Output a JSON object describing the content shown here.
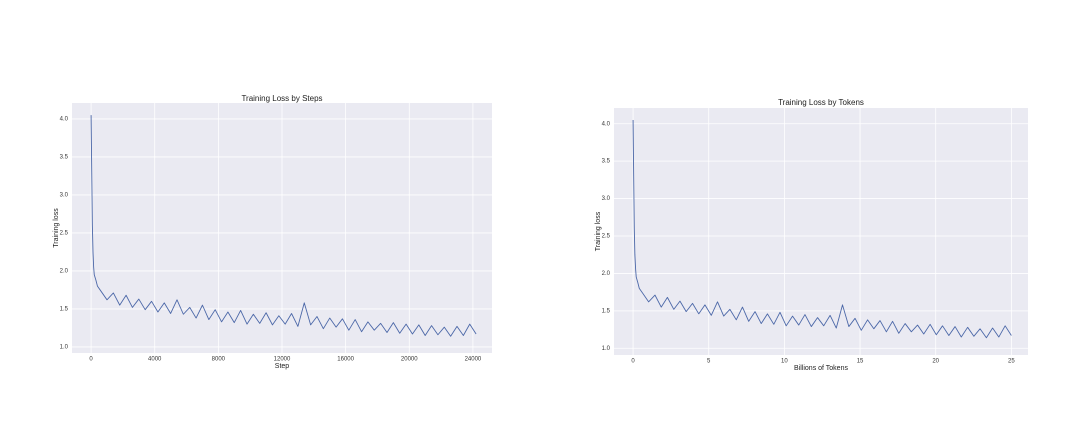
{
  "chart_data": [
    {
      "type": "line",
      "title": "Training Loss by Steps",
      "x_label": "Step",
      "y_label": "Training loss",
      "x": [
        0,
        40,
        80,
        120,
        160,
        200,
        300,
        400,
        600,
        1000,
        1400,
        1800,
        2200,
        2600,
        3000,
        3400,
        3800,
        4200,
        4600,
        5000,
        5400,
        5800,
        6200,
        6600,
        7000,
        7400,
        7800,
        8200,
        8600,
        9000,
        9400,
        9800,
        10200,
        10600,
        11000,
        11400,
        11800,
        12200,
        12600,
        13000,
        13400,
        13800,
        14200,
        14600,
        15000,
        15400,
        15800,
        16200,
        16600,
        17000,
        17400,
        17800,
        18200,
        18600,
        19000,
        19400,
        19800,
        20200,
        20600,
        21000,
        21400,
        21800,
        22200,
        22600,
        23000,
        23400,
        23800,
        24200
      ],
      "series": [
        {
          "name": "Training loss",
          "color": "#4c68a8",
          "values": [
            4.05,
            3.3,
            2.6,
            2.25,
            2.05,
            1.95,
            1.88,
            1.8,
            1.74,
            1.62,
            1.71,
            1.55,
            1.68,
            1.52,
            1.63,
            1.49,
            1.6,
            1.46,
            1.58,
            1.44,
            1.62,
            1.43,
            1.52,
            1.38,
            1.55,
            1.36,
            1.49,
            1.33,
            1.46,
            1.32,
            1.48,
            1.3,
            1.43,
            1.31,
            1.45,
            1.29,
            1.41,
            1.3,
            1.44,
            1.27,
            1.58,
            1.29,
            1.4,
            1.24,
            1.38,
            1.26,
            1.37,
            1.22,
            1.36,
            1.2,
            1.33,
            1.22,
            1.31,
            1.19,
            1.32,
            1.18,
            1.3,
            1.17,
            1.29,
            1.15,
            1.28,
            1.16,
            1.26,
            1.14,
            1.27,
            1.15,
            1.3,
            1.17
          ]
        }
      ],
      "xlim": [
        -1200,
        25200
      ],
      "ylim": [
        0.92,
        4.21
      ],
      "xticks": [
        0,
        4000,
        8000,
        12000,
        16000,
        20000,
        24000
      ],
      "yticks": [
        {
          "value": 1,
          "label": "1.0"
        },
        1.5,
        {
          "value": 2,
          "label": "2.0"
        },
        2.5,
        {
          "value": 3,
          "label": "3.0"
        },
        3.5,
        {
          "value": 4,
          "label": "4.0"
        }
      ],
      "grid": true
    },
    {
      "type": "line",
      "title": "Training Loss by Tokens",
      "x_label": "Billions of Tokens",
      "y_label": "Training loss",
      "x": [
        0,
        0.04,
        0.08,
        0.12,
        0.17,
        0.21,
        0.31,
        0.41,
        0.62,
        1.03,
        1.45,
        1.86,
        2.27,
        2.69,
        3.1,
        3.51,
        3.93,
        4.34,
        4.75,
        5.17,
        5.58,
        5.99,
        6.4,
        6.82,
        7.23,
        7.64,
        8.06,
        8.47,
        8.88,
        9.3,
        9.71,
        10.12,
        10.54,
        10.95,
        11.36,
        11.78,
        12.19,
        12.6,
        13.02,
        13.43,
        13.84,
        14.26,
        14.67,
        15.08,
        15.5,
        15.91,
        16.32,
        16.74,
        17.15,
        17.56,
        17.98,
        18.39,
        18.8,
        19.21,
        19.63,
        20.04,
        20.45,
        20.87,
        21.28,
        21.69,
        22.11,
        22.52,
        22.93,
        23.35,
        23.76,
        24.17,
        24.59,
        25
      ],
      "series": [
        {
          "name": "Training loss",
          "color": "#4c68a8",
          "values": [
            4.05,
            3.3,
            2.6,
            2.25,
            2.05,
            1.95,
            1.88,
            1.8,
            1.74,
            1.62,
            1.71,
            1.55,
            1.68,
            1.52,
            1.63,
            1.49,
            1.6,
            1.46,
            1.58,
            1.44,
            1.62,
            1.43,
            1.52,
            1.38,
            1.55,
            1.36,
            1.49,
            1.33,
            1.46,
            1.32,
            1.48,
            1.3,
            1.43,
            1.31,
            1.45,
            1.29,
            1.41,
            1.3,
            1.44,
            1.27,
            1.58,
            1.29,
            1.4,
            1.24,
            1.38,
            1.26,
            1.37,
            1.22,
            1.36,
            1.2,
            1.33,
            1.22,
            1.31,
            1.19,
            1.32,
            1.18,
            1.3,
            1.17,
            1.29,
            1.15,
            1.28,
            1.16,
            1.26,
            1.14,
            1.27,
            1.15,
            1.3,
            1.17
          ]
        }
      ],
      "xlim": [
        -1.26,
        26.1
      ],
      "ylim": [
        0.91,
        4.21
      ],
      "xticks": [
        0,
        5,
        10,
        15,
        20,
        25
      ],
      "yticks": [
        {
          "value": 1,
          "label": "1.0"
        },
        1.5,
        {
          "value": 2,
          "label": "2.0"
        },
        2.5,
        {
          "value": 3,
          "label": "3.0"
        },
        3.5,
        {
          "value": 4,
          "label": "4.0"
        }
      ],
      "grid": true
    }
  ]
}
